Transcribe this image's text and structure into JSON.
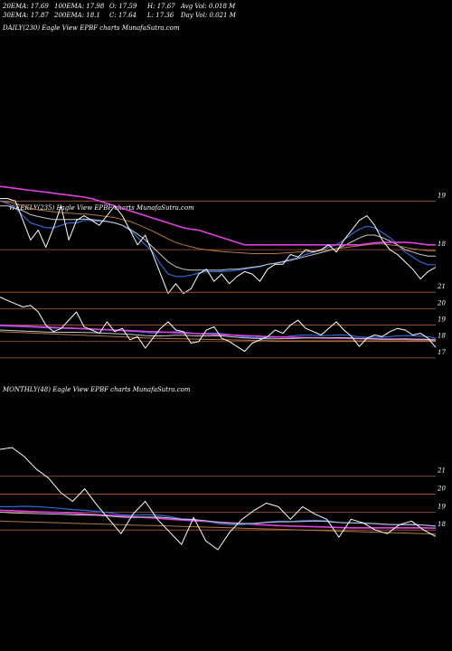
{
  "header": {
    "row1": [
      {
        "label": "20EMA:",
        "value": "17.69"
      },
      {
        "label": "100EMA:",
        "value": "17.98"
      },
      {
        "label": "O:",
        "value": "17.59"
      },
      {
        "label": "H:",
        "value": "17.67"
      },
      {
        "label": "Avg Vol:",
        "value": "0.018 M"
      }
    ],
    "row2": [
      {
        "label": "30EMA:",
        "value": "17.87"
      },
      {
        "label": "200EMA:",
        "value": "18.1"
      },
      {
        "label": "C:",
        "value": "17.64"
      },
      {
        "label": "L:",
        "value": "17.36"
      },
      {
        "label": "Day Vol:",
        "value": "0.021 M"
      }
    ]
  },
  "colors": {
    "background": "#000000",
    "price": "#ffffff",
    "ema_fast": "#2d6bd6",
    "ema_slow": "#c8c8c8",
    "ema_mid": "#b07a3a",
    "ema_long": "#e040e0",
    "level": "#b5553a"
  },
  "chart_data": [
    {
      "panel": "daily",
      "type": "line",
      "title": "DAILY(230) Eagle   View  EPBF charts MunafaSutra.com",
      "y_ticks": [
        "19",
        "18"
      ],
      "ylim": [
        17.0,
        19.6
      ],
      "levels": [
        19,
        18
      ],
      "series": [
        {
          "key": "price",
          "color": "#ffffff",
          "values": [
            19.05,
            19.05,
            19.0,
            18.6,
            18.2,
            18.4,
            18.05,
            18.45,
            18.9,
            18.2,
            18.6,
            18.7,
            18.6,
            18.5,
            18.7,
            18.9,
            18.7,
            18.4,
            18.1,
            18.3,
            17.9,
            17.5,
            17.1,
            17.3,
            17.1,
            17.2,
            17.5,
            17.6,
            17.35,
            17.5,
            17.3,
            17.45,
            17.55,
            17.5,
            17.35,
            17.6,
            17.7,
            17.7,
            17.9,
            17.85,
            18.0,
            17.95,
            18.0,
            18.1,
            17.95,
            18.2,
            18.4,
            18.6,
            18.7,
            18.5,
            18.2,
            18.0,
            17.9,
            17.75,
            17.6,
            17.4,
            17.55,
            17.64
          ]
        },
        {
          "key": "ema_fast",
          "color": "#2d6bd6",
          "values": [
            19.0,
            18.95,
            18.85,
            18.7,
            18.55,
            18.5,
            18.45,
            18.45,
            18.5,
            18.55,
            18.55,
            18.6,
            18.6,
            18.58,
            18.58,
            18.55,
            18.5,
            18.4,
            18.25,
            18.1,
            17.95,
            17.7,
            17.5,
            17.45,
            17.45,
            17.48,
            17.52,
            17.55,
            17.55,
            17.55,
            17.56,
            17.58,
            17.6,
            17.63,
            17.65,
            17.7,
            17.72,
            17.76,
            17.8,
            17.84,
            17.9,
            17.95,
            18.0,
            18.05,
            18.1,
            18.2,
            18.32,
            18.42,
            18.48,
            18.45,
            18.35,
            18.25,
            18.1,
            17.95,
            17.85,
            17.75,
            17.69,
            17.69
          ]
        },
        {
          "key": "ema_slow",
          "color": "#c8c8c8",
          "values": [
            18.9,
            18.9,
            18.85,
            18.8,
            18.72,
            18.68,
            18.65,
            18.62,
            18.62,
            18.62,
            18.62,
            18.63,
            18.62,
            18.6,
            18.58,
            18.55,
            18.5,
            18.42,
            18.32,
            18.2,
            18.05,
            17.9,
            17.75,
            17.65,
            17.6,
            17.58,
            17.58,
            17.58,
            17.58,
            17.58,
            17.6,
            17.6,
            17.62,
            17.64,
            17.66,
            17.7,
            17.72,
            17.75,
            17.78,
            17.82,
            17.86,
            17.9,
            17.94,
            17.98,
            18.02,
            18.08,
            18.16,
            18.24,
            18.3,
            18.3,
            18.25,
            18.18,
            18.1,
            18.0,
            17.95,
            17.9,
            17.87,
            17.87
          ]
        },
        {
          "key": "ema_mid",
          "color": "#b07a3a",
          "values": [
            19.0,
            18.98,
            18.95,
            18.9,
            18.85,
            18.82,
            18.8,
            18.78,
            18.76,
            18.75,
            18.74,
            18.73,
            18.72,
            18.7,
            18.68,
            18.66,
            18.62,
            18.58,
            18.52,
            18.45,
            18.38,
            18.3,
            18.22,
            18.15,
            18.1,
            18.06,
            18.02,
            18.0,
            17.98,
            17.96,
            17.95,
            17.94,
            17.93,
            17.92,
            17.92,
            17.92,
            17.92,
            17.93,
            17.94,
            17.95,
            17.96,
            17.97,
            17.98,
            18.0,
            18.02,
            18.04,
            18.06,
            18.08,
            18.1,
            18.12,
            18.12,
            18.1,
            18.08,
            18.05,
            18.02,
            18.0,
            17.98,
            17.98
          ]
        },
        {
          "key": "ema_long",
          "color": "#e040e0",
          "values": [
            19.3,
            19.28,
            19.26,
            19.24,
            19.22,
            19.2,
            19.18,
            19.16,
            19.14,
            19.12,
            19.1,
            19.08,
            19.05,
            19.0,
            18.95,
            18.9,
            18.85,
            18.8,
            18.75,
            18.7,
            18.65,
            18.6,
            18.55,
            18.5,
            18.45,
            18.42,
            18.4,
            18.35,
            18.3,
            18.25,
            18.2,
            18.15,
            18.1,
            18.1,
            18.1,
            18.1,
            18.1,
            18.1,
            18.1,
            18.1,
            18.1,
            18.1,
            18.1,
            18.1,
            18.1,
            18.1,
            18.1,
            18.1,
            18.12,
            18.14,
            18.15,
            18.15,
            18.15,
            18.15,
            18.14,
            18.12,
            18.1,
            18.1
          ]
        }
      ]
    },
    {
      "panel": "weekly",
      "type": "line",
      "title": "WEEKLY(235) Eagle   View  EPBF charts MunafaSutra.com",
      "y_ticks": [
        "21",
        "20",
        "19",
        "18",
        "17"
      ],
      "ylim": [
        16.5,
        22.0
      ],
      "levels": [
        21,
        20,
        19,
        18,
        17
      ],
      "series": [
        {
          "key": "price",
          "color": "#ffffff",
          "values": [
            20.7,
            20.5,
            20.3,
            20.1,
            20.2,
            19.8,
            19.0,
            18.6,
            18.8,
            19.3,
            19.8,
            18.9,
            18.7,
            18.5,
            19.2,
            18.6,
            18.8,
            18.1,
            18.3,
            17.6,
            18.2,
            18.8,
            19.2,
            18.7,
            18.6,
            17.9,
            18.0,
            18.7,
            18.9,
            18.2,
            18.0,
            17.7,
            17.4,
            17.9,
            18.1,
            18.3,
            18.7,
            18.5,
            19.0,
            19.3,
            18.8,
            18.6,
            18.4,
            18.8,
            19.2,
            18.7,
            18.3,
            17.7,
            18.2,
            18.4,
            18.3,
            18.6,
            18.8,
            18.7,
            18.4,
            18.5,
            18.2,
            17.64
          ]
        },
        {
          "key": "ema_fast",
          "color": "#2d6bd6",
          "values": [
            18.95,
            18.93,
            18.92,
            18.9,
            18.88,
            18.86,
            18.84,
            18.82,
            18.8,
            18.79,
            18.78,
            18.76,
            18.74,
            18.72,
            18.7,
            18.68,
            18.66,
            18.62,
            18.6,
            18.55,
            18.52,
            18.55,
            18.58,
            18.6,
            18.58,
            18.52,
            18.48,
            18.5,
            18.52,
            18.48,
            18.42,
            18.35,
            18.28,
            18.25,
            18.24,
            18.24,
            18.26,
            18.28,
            18.32,
            18.38,
            18.4,
            18.38,
            18.36,
            18.36,
            18.4,
            18.4,
            18.36,
            18.28,
            18.26,
            18.26,
            18.26,
            18.3,
            18.34,
            18.36,
            18.35,
            18.33,
            18.3,
            18.2
          ]
        },
        {
          "key": "ema_long",
          "color": "#e040e0",
          "values": [
            19.0,
            18.98,
            18.96,
            18.94,
            18.92,
            18.9,
            18.88,
            18.86,
            18.84,
            18.82,
            18.8,
            18.78,
            18.76,
            18.74,
            18.72,
            18.7,
            18.68,
            18.66,
            18.64,
            18.62,
            18.6,
            18.58,
            18.56,
            18.54,
            18.52,
            18.5,
            18.48,
            18.46,
            18.44,
            18.42,
            18.4,
            18.38,
            18.36,
            18.34,
            18.32,
            18.3,
            18.28,
            18.27,
            18.26,
            18.25,
            18.24,
            18.23,
            18.22,
            18.21,
            18.2,
            18.2,
            18.19,
            18.18,
            18.17,
            18.16,
            18.15,
            18.15,
            18.14,
            18.14,
            18.13,
            18.13,
            18.12,
            18.12
          ]
        },
        {
          "key": "ema_slow",
          "color": "#c8c8c8",
          "values": [
            18.7,
            18.68,
            18.66,
            18.64,
            18.62,
            18.6,
            18.58,
            18.56,
            18.56,
            18.56,
            18.56,
            18.55,
            18.54,
            18.52,
            18.5,
            18.48,
            18.46,
            18.44,
            18.4,
            18.36,
            18.34,
            18.34,
            18.36,
            18.38,
            18.38,
            18.36,
            18.34,
            18.34,
            18.36,
            18.34,
            18.3,
            18.26,
            18.22,
            18.2,
            18.18,
            18.16,
            18.16,
            18.17,
            18.18,
            18.2,
            18.22,
            18.22,
            18.22,
            18.22,
            18.24,
            18.24,
            18.22,
            18.18,
            18.16,
            18.15,
            18.14,
            18.14,
            18.15,
            18.16,
            18.15,
            18.14,
            18.12,
            18.08
          ]
        },
        {
          "key": "ema_mid",
          "color": "#b07a3a",
          "values": [
            18.6,
            18.58,
            18.56,
            18.54,
            18.52,
            18.5,
            18.48,
            18.46,
            18.44,
            18.42,
            18.4,
            18.38,
            18.36,
            18.34,
            18.32,
            18.3,
            18.28,
            18.26,
            18.24,
            18.22,
            18.2,
            18.19,
            18.18,
            18.17,
            18.16,
            18.15,
            18.14,
            18.13,
            18.12,
            18.11,
            18.1,
            18.09,
            18.08,
            18.07,
            18.06,
            18.05,
            18.04,
            18.04,
            18.04,
            18.04,
            18.04,
            18.04,
            18.04,
            18.04,
            18.04,
            18.04,
            18.04,
            18.04,
            18.04,
            18.04,
            18.04,
            18.04,
            18.04,
            18.04,
            18.04,
            18.04,
            18.04,
            18.04
          ]
        }
      ]
    },
    {
      "panel": "monthly",
      "type": "line",
      "title": "MONTHLY(48) Eagle   View  EPBF charts MunafaSutra.com",
      "y_ticks": [
        "21",
        "20",
        "19",
        "18"
      ],
      "ylim": [
        16.8,
        22.6
      ],
      "levels": [
        21,
        20,
        19,
        18
      ],
      "series": [
        {
          "key": "price",
          "color": "#ffffff",
          "values": [
            22.5,
            22.6,
            22.1,
            21.4,
            20.9,
            20.1,
            19.6,
            20.3,
            19.4,
            18.6,
            17.8,
            18.9,
            19.6,
            18.6,
            17.9,
            17.2,
            18.7,
            17.4,
            16.9,
            17.9,
            18.6,
            19.1,
            19.5,
            19.3,
            18.6,
            19.3,
            18.9,
            18.6,
            17.6,
            18.6,
            18.4,
            18.0,
            17.8,
            18.3,
            18.5,
            18.0,
            17.64
          ]
        },
        {
          "key": "ema_long",
          "color": "#e040e0",
          "values": [
            19.1,
            19.08,
            19.05,
            19.02,
            19.0,
            18.98,
            18.94,
            18.9,
            18.86,
            18.82,
            18.78,
            18.74,
            18.7,
            18.66,
            18.6,
            18.56,
            18.52,
            18.48,
            18.44,
            18.4,
            18.36,
            18.32,
            18.28,
            18.25,
            18.22,
            18.2,
            18.18,
            18.16,
            18.14,
            18.12,
            18.12,
            18.12,
            18.12,
            18.12,
            18.12,
            18.12,
            18.1
          ]
        },
        {
          "key": "ema_fast",
          "color": "#2d6bd6",
          "values": [
            19.3,
            19.3,
            19.32,
            19.3,
            19.26,
            19.2,
            19.14,
            19.1,
            19.04,
            18.96,
            18.86,
            18.82,
            18.86,
            18.84,
            18.76,
            18.62,
            18.6,
            18.5,
            18.36,
            18.3,
            18.3,
            18.36,
            18.44,
            18.5,
            18.48,
            18.52,
            18.54,
            18.52,
            18.42,
            18.4,
            18.4,
            18.36,
            18.3,
            18.3,
            18.32,
            18.28,
            18.2
          ]
        },
        {
          "key": "ema_slow",
          "color": "#c8c8c8",
          "values": [
            19.0,
            18.96,
            18.94,
            18.92,
            18.9,
            18.88,
            18.85,
            18.84,
            18.82,
            18.78,
            18.72,
            18.7,
            18.72,
            18.72,
            18.68,
            18.6,
            18.58,
            18.52,
            18.44,
            18.38,
            18.36,
            18.38,
            18.42,
            18.46,
            18.46,
            18.48,
            18.5,
            18.48,
            18.42,
            18.4,
            18.38,
            18.36,
            18.32,
            18.3,
            18.3,
            18.28,
            18.22
          ]
        },
        {
          "key": "ema_mid",
          "color": "#b07a3a",
          "values": [
            18.5,
            18.48,
            18.46,
            18.44,
            18.42,
            18.4,
            18.38,
            18.36,
            18.34,
            18.32,
            18.3,
            18.28,
            18.26,
            18.24,
            18.22,
            18.2,
            18.18,
            18.16,
            18.14,
            18.12,
            18.1,
            18.08,
            18.06,
            18.04,
            18.02,
            18.0,
            17.98,
            17.96,
            17.94,
            17.92,
            17.9,
            17.88,
            17.86,
            17.84,
            17.82,
            17.8,
            17.78
          ]
        }
      ]
    }
  ]
}
